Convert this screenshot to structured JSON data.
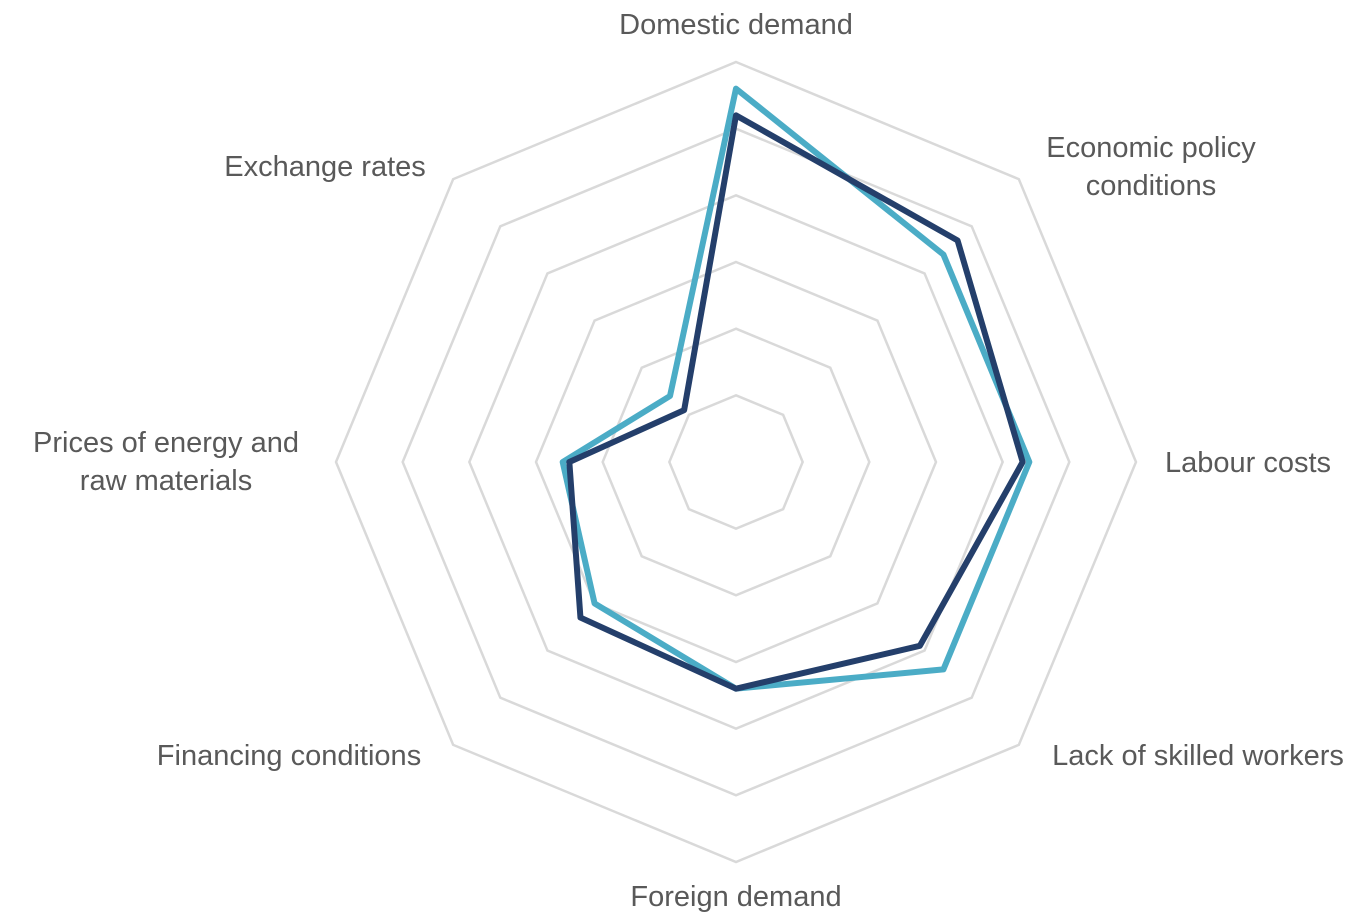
{
  "chart_data": {
    "type": "radar",
    "categories": [
      "Domestic demand",
      "Economic policy conditions",
      "Labour costs",
      "Lack of skilled workers",
      "Foreign demand",
      "Financing conditions",
      "Prices of energy and raw materials",
      "Exchange rates"
    ],
    "series": [
      {
        "color": "#4bacc6",
        "values": [
          56,
          44,
          44,
          44,
          34,
          30,
          26,
          14
        ]
      },
      {
        "color": "#243f6b",
        "values": [
          52,
          47,
          43,
          39,
          34,
          33,
          25,
          11
        ]
      }
    ],
    "ylim": [
      0,
      60
    ],
    "yticks": [
      10,
      20,
      30,
      40,
      50,
      60
    ],
    "grid": true
  }
}
